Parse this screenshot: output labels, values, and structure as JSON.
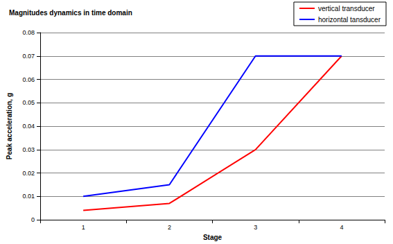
{
  "chart_data": {
    "type": "line",
    "title": "Magnitudes dynamics in time domain",
    "x_label": "Stage",
    "y_label": "Peak acceleration, g",
    "categories": [
      "1",
      "2",
      "3",
      "4"
    ],
    "series": [
      {
        "name": "vertical transducer",
        "color": "#ff0000",
        "values": [
          0.004,
          0.007,
          0.03,
          0.07
        ]
      },
      {
        "name": "horizontal tansducer",
        "color": "#0000ff",
        "values": [
          0.01,
          0.015,
          0.07,
          0.07
        ]
      }
    ],
    "ylim": [
      0,
      0.08
    ],
    "yticks": [
      0,
      0.01,
      0.02,
      0.03,
      0.04,
      0.05,
      0.06,
      0.07,
      0.08
    ],
    "grid": true,
    "legend": "top-right"
  }
}
